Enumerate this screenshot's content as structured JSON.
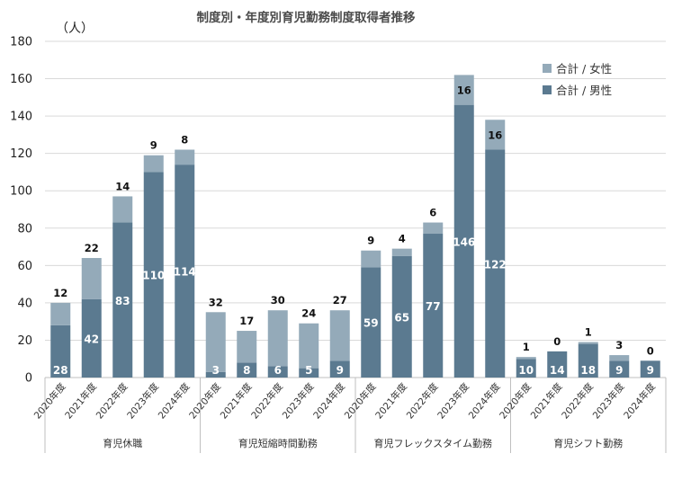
{
  "chart_data": {
    "type": "bar",
    "stacked": true,
    "title": "制度別・年度別育児勤務制度取得者推移",
    "unit_label": "（人）",
    "ylim": [
      0,
      180
    ],
    "yticks": [
      0,
      20,
      40,
      60,
      80,
      100,
      120,
      140,
      160,
      180
    ],
    "grid": true,
    "legend_position": "top-right",
    "colors": {
      "female": "#94aab9",
      "male": "#5b7a90"
    },
    "legend": [
      {
        "key": "female",
        "label": "合計 / 女性"
      },
      {
        "key": "male",
        "label": "合計 / 男性"
      }
    ],
    "groups": [
      {
        "name": "育児休職",
        "categories": [
          "2020年度",
          "2021年度",
          "2022年度",
          "2023年度",
          "2024年度"
        ],
        "male": [
          28,
          42,
          83,
          110,
          114
        ],
        "female": [
          12,
          22,
          14,
          9,
          8
        ]
      },
      {
        "name": "育児短縮時間勤務",
        "categories": [
          "2020年度",
          "2021年度",
          "2022年度",
          "2023年度",
          "2024年度"
        ],
        "male": [
          3,
          8,
          6,
          5,
          9
        ],
        "female": [
          32,
          17,
          30,
          24,
          27
        ]
      },
      {
        "name": "育児フレックスタイム勤務",
        "categories": [
          "2020年度",
          "2021年度",
          "2022年度",
          "2023年度",
          "2024年度"
        ],
        "male": [
          59,
          65,
          77,
          146,
          122
        ],
        "female": [
          9,
          4,
          6,
          16,
          16
        ]
      },
      {
        "name": "育児シフト勤務",
        "categories": [
          "2020年度",
          "2021年度",
          "2022年度",
          "2023年度",
          "2024年度"
        ],
        "male": [
          10,
          14,
          18,
          9,
          9
        ],
        "female": [
          1,
          0,
          1,
          3,
          0
        ]
      }
    ]
  }
}
